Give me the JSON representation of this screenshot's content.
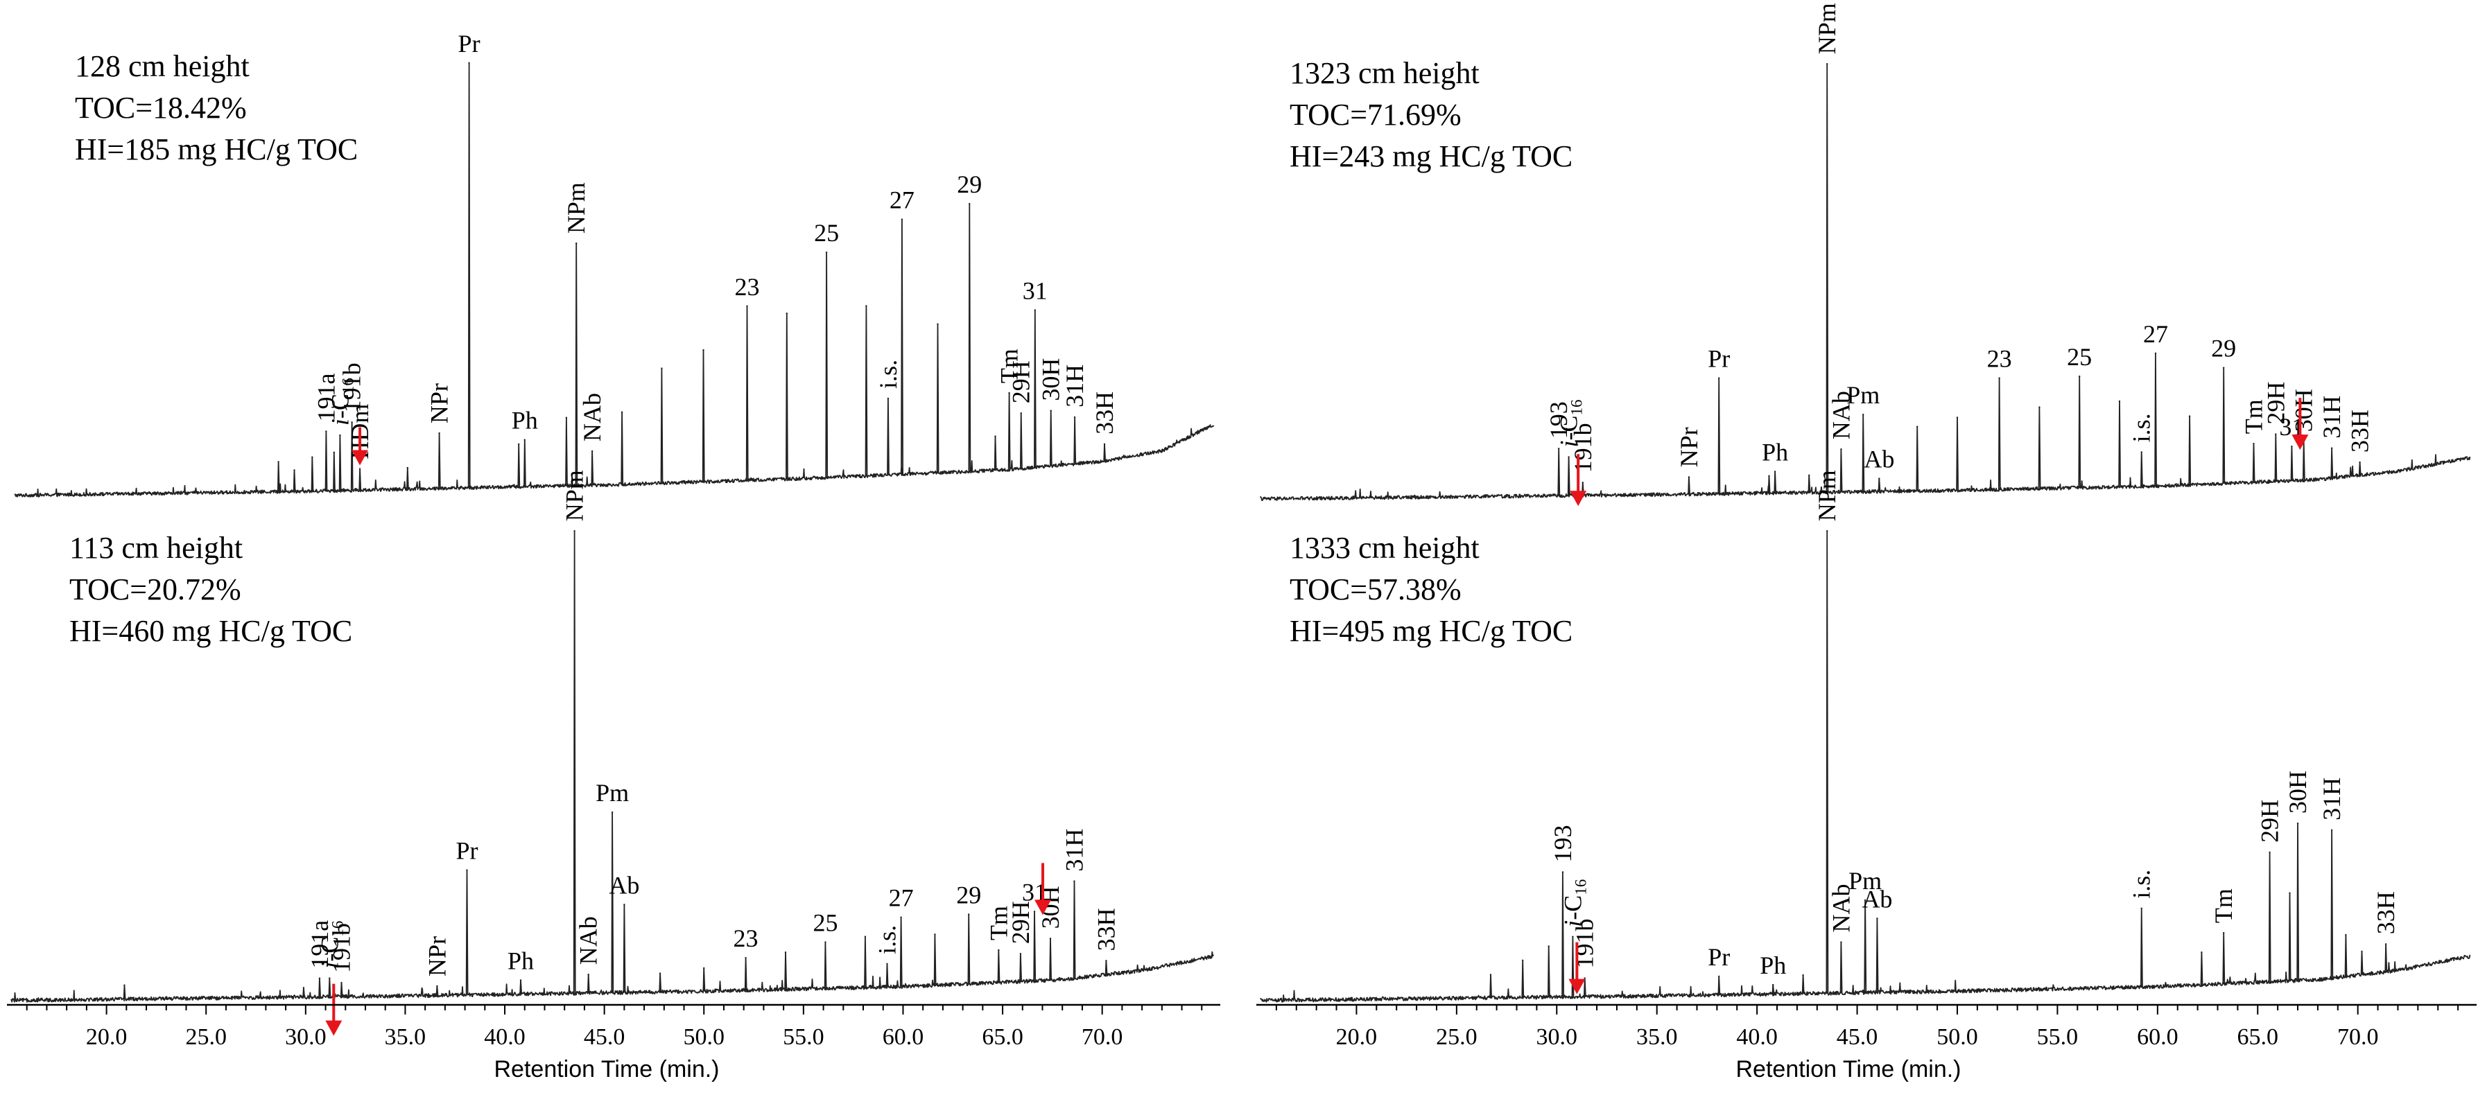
{
  "x_axis": {
    "label": "Retention Time (min.)",
    "range": [
      15,
      76
    ],
    "ticks": [
      20.0,
      25.0,
      30.0,
      35.0,
      40.0,
      45.0,
      50.0,
      55.0,
      60.0,
      65.0,
      70.0
    ],
    "tick_labels": [
      "20.0",
      "25.0",
      "30.0",
      "35.0",
      "40.0",
      "45.0",
      "50.0",
      "55.0",
      "60.0",
      "65.0",
      "70.0"
    ]
  },
  "colors": {
    "trace": "#222222",
    "axis": "#000000",
    "arrow": "#e8141b",
    "text": "#000000"
  },
  "chart_data": [
    {
      "type": "line",
      "title": "128 cm height",
      "toc": "TOC=18.42%",
      "hi": "HI=185 mg HC/g TOC",
      "xlim": [
        15,
        76
      ],
      "ylim": [
        0,
        100
      ],
      "baseline": [
        [
          15,
          0.5
        ],
        [
          30,
          1.5
        ],
        [
          45,
          3
        ],
        [
          55,
          4.5
        ],
        [
          65,
          6.5
        ],
        [
          70,
          8.5
        ],
        [
          73,
          11
        ],
        [
          75.5,
          17
        ]
      ],
      "peaks": [
        {
          "x": 28.5,
          "y": 7
        },
        {
          "x": 29.3,
          "y": 5
        },
        {
          "x": 30.2,
          "y": 8
        },
        {
          "x": 30.9,
          "y": 14,
          "label": "191a"
        },
        {
          "x": 31.3,
          "y": 9
        },
        {
          "x": 31.6,
          "y": 13,
          "label": "i-C16"
        },
        {
          "x": 32.2,
          "y": 16,
          "label": "191b"
        },
        {
          "x": 32.6,
          "y": 5,
          "label": "HDm"
        },
        {
          "x": 35.0,
          "y": 5
        },
        {
          "x": 36.6,
          "y": 13,
          "label": "NPr"
        },
        {
          "x": 38.1,
          "y": 100,
          "label": "Pr"
        },
        {
          "x": 40.6,
          "y": 10
        },
        {
          "x": 40.9,
          "y": 11,
          "label": "Ph"
        },
        {
          "x": 43.0,
          "y": 16
        },
        {
          "x": 43.5,
          "y": 57,
          "label": "NPm"
        },
        {
          "x": 44.3,
          "y": 8,
          "label": "NAb"
        },
        {
          "x": 45.8,
          "y": 17
        },
        {
          "x": 47.8,
          "y": 27
        },
        {
          "x": 49.9,
          "y": 31
        },
        {
          "x": 52.1,
          "y": 41,
          "label": "23"
        },
        {
          "x": 54.1,
          "y": 39
        },
        {
          "x": 56.1,
          "y": 53,
          "label": "25"
        },
        {
          "x": 58.1,
          "y": 40
        },
        {
          "x": 59.2,
          "y": 18,
          "label": "i.s."
        },
        {
          "x": 59.9,
          "y": 60,
          "label": "27"
        },
        {
          "x": 61.7,
          "y": 35
        },
        {
          "x": 63.3,
          "y": 63,
          "label": "29"
        },
        {
          "x": 64.6,
          "y": 8
        },
        {
          "x": 65.3,
          "y": 18,
          "label": "Tm"
        },
        {
          "x": 65.9,
          "y": 13,
          "label": "29H"
        },
        {
          "x": 66.6,
          "y": 37,
          "label": "31"
        },
        {
          "x": 67.4,
          "y": 13,
          "label": "30H"
        },
        {
          "x": 68.6,
          "y": 11,
          "label": "31H"
        },
        {
          "x": 70.1,
          "y": 4,
          "label": "33H"
        }
      ]
    },
    {
      "type": "line",
      "title": "1323 cm height",
      "toc": "TOC=71.69%",
      "hi": "HI=243 mg HC/g TOC",
      "xlim": [
        15,
        76
      ],
      "ylim": [
        0,
        100
      ],
      "baseline": [
        [
          15,
          0.5
        ],
        [
          35,
          1.5
        ],
        [
          50,
          2.5
        ],
        [
          60,
          3.5
        ],
        [
          68,
          5
        ],
        [
          72,
          7
        ],
        [
          75.5,
          10
        ]
      ],
      "peaks": [
        {
          "x": 30.1,
          "y": 11,
          "label": "193"
        },
        {
          "x": 30.6,
          "y": 9,
          "label": "i-C16"
        },
        {
          "x": 31.3,
          "y": 3,
          "label": "191b"
        },
        {
          "x": 36.6,
          "y": 4,
          "label": "NPr"
        },
        {
          "x": 38.1,
          "y": 27,
          "label": "Pr"
        },
        {
          "x": 40.6,
          "y": 4
        },
        {
          "x": 40.9,
          "y": 5,
          "label": "Ph"
        },
        {
          "x": 42.6,
          "y": 4
        },
        {
          "x": 43.5,
          "y": 100,
          "label": "NPm"
        },
        {
          "x": 44.2,
          "y": 10,
          "label": "NAb"
        },
        {
          "x": 45.3,
          "y": 18,
          "label": "Pm"
        },
        {
          "x": 46.1,
          "y": 3,
          "label": "Ab"
        },
        {
          "x": 48.0,
          "y": 15
        },
        {
          "x": 50.0,
          "y": 17
        },
        {
          "x": 52.1,
          "y": 26,
          "label": "23"
        },
        {
          "x": 54.1,
          "y": 19
        },
        {
          "x": 56.1,
          "y": 26,
          "label": "25"
        },
        {
          "x": 58.1,
          "y": 20
        },
        {
          "x": 59.2,
          "y": 8,
          "label": "i.s."
        },
        {
          "x": 59.9,
          "y": 31,
          "label": "27"
        },
        {
          "x": 61.6,
          "y": 16
        },
        {
          "x": 63.3,
          "y": 27,
          "label": "29"
        },
        {
          "x": 64.8,
          "y": 9,
          "label": "Tm"
        },
        {
          "x": 65.9,
          "y": 11,
          "label": "29H"
        },
        {
          "x": 66.7,
          "y": 8,
          "label": "31"
        },
        {
          "x": 67.3,
          "y": 9,
          "label": "30H"
        },
        {
          "x": 68.7,
          "y": 7,
          "label": "31H"
        },
        {
          "x": 70.1,
          "y": 3,
          "label": "33H"
        }
      ]
    },
    {
      "type": "line",
      "title": "113 cm height",
      "toc": "TOC=20.72%",
      "hi": "HI=460 mg HC/g TOC",
      "xlim": [
        15,
        76
      ],
      "ylim": [
        0,
        100
      ],
      "baseline": [
        [
          15,
          0.5
        ],
        [
          35,
          1.5
        ],
        [
          50,
          2.5
        ],
        [
          60,
          3.5
        ],
        [
          68,
          5
        ],
        [
          72,
          7
        ],
        [
          75.5,
          10
        ]
      ],
      "peaks": [
        {
          "x": 20.9,
          "y": 3
        },
        {
          "x": 29.9,
          "y": 2
        },
        {
          "x": 30.7,
          "y": 4,
          "label": "191a"
        },
        {
          "x": 31.2,
          "y": 4,
          "label": "i-C16"
        },
        {
          "x": 31.8,
          "y": 3,
          "label": "191b"
        },
        {
          "x": 36.6,
          "y": 2,
          "label": "NPr"
        },
        {
          "x": 38.1,
          "y": 27,
          "label": "Pr"
        },
        {
          "x": 40.8,
          "y": 3,
          "label": "Ph"
        },
        {
          "x": 43.5,
          "y": 100,
          "label": "NPm"
        },
        {
          "x": 44.2,
          "y": 4,
          "label": "NAb"
        },
        {
          "x": 45.4,
          "y": 39,
          "label": "Pm"
        },
        {
          "x": 46.0,
          "y": 19,
          "label": "Ab"
        },
        {
          "x": 47.8,
          "y": 4
        },
        {
          "x": 50.0,
          "y": 5
        },
        {
          "x": 52.1,
          "y": 7,
          "label": "23"
        },
        {
          "x": 54.1,
          "y": 8
        },
        {
          "x": 56.1,
          "y": 10,
          "label": "25"
        },
        {
          "x": 58.1,
          "y": 11
        },
        {
          "x": 59.2,
          "y": 5,
          "label": "i.s."
        },
        {
          "x": 59.9,
          "y": 15,
          "label": "27"
        },
        {
          "x": 61.6,
          "y": 11
        },
        {
          "x": 63.3,
          "y": 15,
          "label": "29"
        },
        {
          "x": 64.8,
          "y": 7,
          "label": "Tm"
        },
        {
          "x": 65.9,
          "y": 6,
          "label": "29H"
        },
        {
          "x": 66.6,
          "y": 15,
          "label": "31"
        },
        {
          "x": 67.4,
          "y": 9,
          "label": "30H"
        },
        {
          "x": 68.6,
          "y": 21,
          "label": "31H"
        },
        {
          "x": 70.2,
          "y": 3,
          "label": "33H"
        }
      ]
    },
    {
      "type": "line",
      "title": "1333 cm height",
      "toc": "TOC=57.38%",
      "hi": "HI=495 mg HC/g TOC",
      "xlim": [
        15,
        76
      ],
      "ylim": [
        0,
        100
      ],
      "baseline": [
        [
          15,
          0.5
        ],
        [
          35,
          1.5
        ],
        [
          50,
          2.5
        ],
        [
          60,
          3.5
        ],
        [
          68,
          5
        ],
        [
          72,
          7
        ],
        [
          75.5,
          10
        ]
      ],
      "peaks": [
        {
          "x": 26.7,
          "y": 5
        },
        {
          "x": 28.3,
          "y": 8
        },
        {
          "x": 29.6,
          "y": 11
        },
        {
          "x": 30.3,
          "y": 27,
          "label": "193"
        },
        {
          "x": 30.8,
          "y": 13,
          "label": "i-C16"
        },
        {
          "x": 31.4,
          "y": 4,
          "label": "191b"
        },
        {
          "x": 38.1,
          "y": 4,
          "label": "Pr"
        },
        {
          "x": 40.8,
          "y": 2,
          "label": "Ph"
        },
        {
          "x": 42.3,
          "y": 4
        },
        {
          "x": 43.5,
          "y": 100,
          "label": "NPm"
        },
        {
          "x": 44.2,
          "y": 11,
          "label": "NAb"
        },
        {
          "x": 45.4,
          "y": 20,
          "label": "Pm"
        },
        {
          "x": 46.0,
          "y": 16,
          "label": "Ab"
        },
        {
          "x": 59.2,
          "y": 17,
          "label": "i.s."
        },
        {
          "x": 62.2,
          "y": 7
        },
        {
          "x": 63.3,
          "y": 11,
          "label": "Tm"
        },
        {
          "x": 65.6,
          "y": 28,
          "label": "29H"
        },
        {
          "x": 66.6,
          "y": 19
        },
        {
          "x": 67.0,
          "y": 34,
          "label": "30H"
        },
        {
          "x": 68.7,
          "y": 32,
          "label": "31H"
        },
        {
          "x": 69.4,
          "y": 9
        },
        {
          "x": 70.2,
          "y": 5
        },
        {
          "x": 71.4,
          "y": 6,
          "label": "33H"
        }
      ]
    }
  ]
}
